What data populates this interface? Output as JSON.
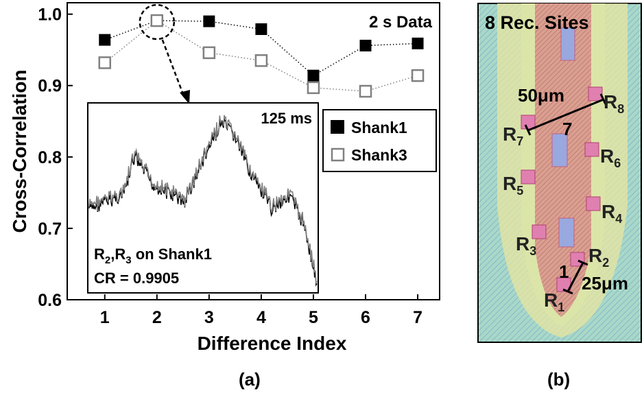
{
  "chart_data": {
    "type": "scatter-line",
    "title": "2 s Data",
    "xlabel": "Difference Index",
    "ylabel": "Cross-Correlation",
    "x": [
      1,
      2,
      3,
      4,
      5,
      6,
      7
    ],
    "series": [
      {
        "name": "Shank1",
        "color": "#000000",
        "values": [
          0.964,
          0.991,
          0.99,
          0.979,
          0.914,
          0.956,
          0.959
        ]
      },
      {
        "name": "Shank3",
        "color": "#808080",
        "values": [
          0.932,
          0.991,
          0.946,
          0.935,
          0.897,
          0.892,
          0.914
        ]
      }
    ],
    "xlim": [
      0.28,
      7.42
    ],
    "ylim": [
      0.6,
      1.016
    ],
    "xticks": [
      1,
      2,
      3,
      4,
      5,
      6,
      7
    ],
    "yticks": [
      0.6,
      0.7,
      0.8,
      0.9,
      {
        "value": 1,
        "label": "1.0"
      }
    ],
    "inset": {
      "duration": "125 ms",
      "label": [
        "R",
        "2",
        ",R",
        "3",
        " on Shank1"
      ],
      "cr": "CR = 0.9905"
    },
    "panel_label": "(a)"
  },
  "panel_b": {
    "title": "8 Rec. Sites",
    "panel_label": "(b)",
    "scale_long": "50μm",
    "scale_long_digit": "7",
    "scale_short": "25μm",
    "scale_short_digit": "1",
    "sites": [
      {
        "letter": "R",
        "index": "1"
      },
      {
        "letter": "R",
        "index": "2"
      },
      {
        "letter": "R",
        "index": "3"
      },
      {
        "letter": "R",
        "index": "4"
      },
      {
        "letter": "R",
        "index": "5"
      },
      {
        "letter": "R",
        "index": "6"
      },
      {
        "letter": "R",
        "index": "7"
      },
      {
        "letter": "R",
        "index": "8"
      }
    ]
  }
}
